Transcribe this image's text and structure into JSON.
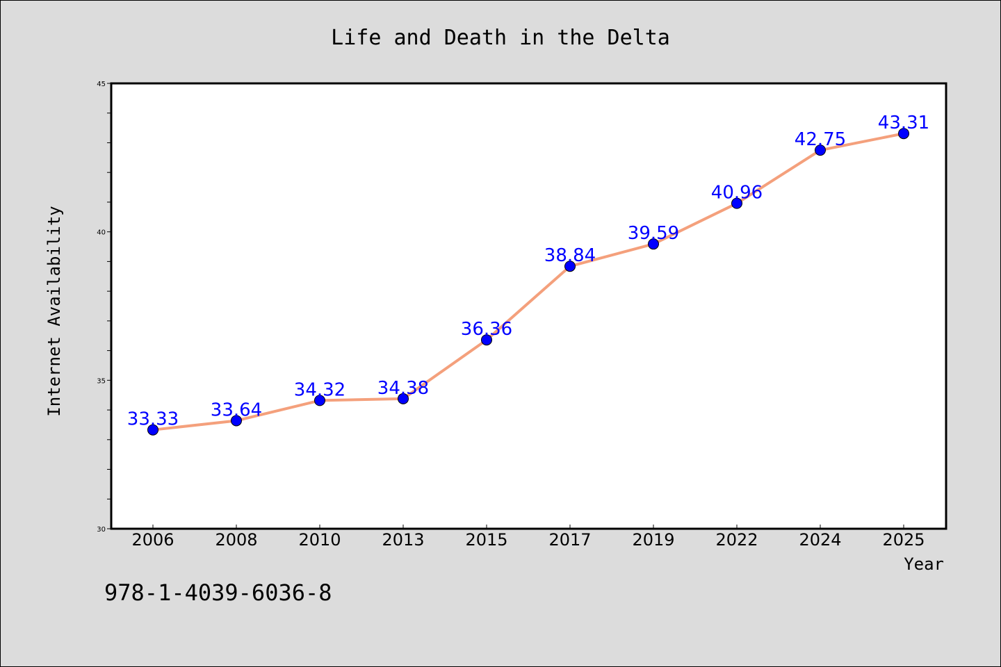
{
  "chart_data": {
    "type": "line",
    "title": "Life and Death in the Delta",
    "xlabel": "Year",
    "ylabel": "Internet Availability",
    "categories": [
      "2006",
      "2008",
      "2010",
      "2013",
      "2015",
      "2017",
      "2019",
      "2022",
      "2024",
      "2025"
    ],
    "series": [
      {
        "values": [
          33.33,
          33.64,
          34.32,
          34.38,
          36.36,
          38.84,
          39.59,
          40.96,
          42.75,
          43.31
        ],
        "labels": [
          "33.33",
          "33.64",
          "34.32",
          "34.38",
          "36.36",
          "38.84",
          "39.59",
          "40.96",
          "42.75",
          "43.31"
        ]
      }
    ],
    "ylim": [
      30,
      45
    ],
    "yticks": [
      "30",
      "35",
      "40",
      "45"
    ],
    "grid": false,
    "colors": {
      "line": "#f4a07c",
      "marker": "#0000ff",
      "labels": "#0000ff"
    }
  },
  "footer": {
    "isbn": "978-1-4039-6036-8"
  }
}
